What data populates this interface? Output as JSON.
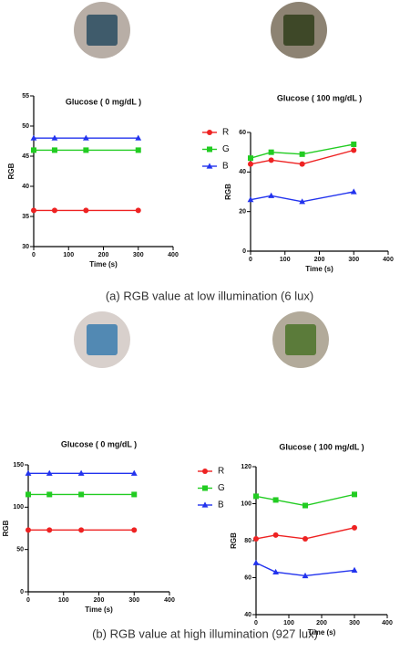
{
  "chart_data": [
    {
      "type": "line",
      "title": "Glucose ( 0 mg/dL )",
      "xlabel": "Time (s)",
      "ylabel": "RGB",
      "x": [
        0,
        60,
        150,
        300
      ],
      "xlim": [
        0,
        400
      ],
      "xticks": [
        0,
        100,
        200,
        300,
        400
      ],
      "ylim": [
        30,
        55
      ],
      "yticks": [
        30,
        35,
        40,
        45,
        50,
        55
      ],
      "series": [
        {
          "name": "R",
          "color": "#ee2222",
          "marker": "circle",
          "values": [
            36,
            36,
            36,
            36
          ]
        },
        {
          "name": "G",
          "color": "#22cc22",
          "marker": "square",
          "values": [
            46,
            46,
            46,
            46
          ]
        },
        {
          "name": "B",
          "color": "#2233ee",
          "marker": "triangle",
          "values": [
            48,
            48,
            48,
            48
          ]
        }
      ]
    },
    {
      "type": "line",
      "title": "Glucose ( 100 mg/dL )",
      "xlabel": "Time (s)",
      "ylabel": "RGB",
      "x": [
        0,
        60,
        150,
        300
      ],
      "xlim": [
        0,
        400
      ],
      "xticks": [
        0,
        100,
        200,
        300,
        400
      ],
      "ylim": [
        0,
        60
      ],
      "yticks": [
        0,
        20,
        40,
        60
      ],
      "series": [
        {
          "color": "#ee2222",
          "marker": "circle",
          "values": [
            44,
            46,
            44,
            51
          ]
        },
        {
          "color": "#22cc22",
          "marker": "square",
          "values": [
            47,
            50,
            49,
            54
          ]
        },
        {
          "color": "#2233ee",
          "marker": "triangle",
          "values": [
            26,
            28,
            25,
            30
          ]
        }
      ]
    },
    {
      "type": "line",
      "title": "Glucose ( 0 mg/dL )",
      "xlabel": "Time (s)",
      "ylabel": "RGB",
      "x": [
        0,
        60,
        150,
        300
      ],
      "xlim": [
        0,
        400
      ],
      "xticks": [
        0,
        100,
        200,
        300,
        400
      ],
      "ylim": [
        0,
        150
      ],
      "yticks": [
        0,
        50,
        100,
        150
      ],
      "series": [
        {
          "name": "R",
          "color": "#ee2222",
          "marker": "circle",
          "values": [
            73,
            73,
            73,
            73
          ]
        },
        {
          "name": "G",
          "color": "#22cc22",
          "marker": "square",
          "values": [
            115,
            115,
            115,
            115
          ]
        },
        {
          "name": "B",
          "color": "#2233ee",
          "marker": "triangle",
          "values": [
            140,
            140,
            140,
            140
          ]
        }
      ]
    },
    {
      "type": "line",
      "title": "Glucose ( 100 mg/dL )",
      "xlabel": "Time (s)",
      "ylabel": "RGB",
      "x": [
        0,
        60,
        150,
        300
      ],
      "xlim": [
        0,
        400
      ],
      "xticks": [
        0,
        100,
        200,
        300,
        400
      ],
      "ylim": [
        40,
        120
      ],
      "yticks": [
        40,
        60,
        80,
        100,
        120
      ],
      "series": [
        {
          "color": "#ee2222",
          "marker": "circle",
          "values": [
            81,
            83,
            81,
            87
          ]
        },
        {
          "color": "#22cc22",
          "marker": "square",
          "values": [
            104,
            102,
            99,
            105
          ]
        },
        {
          "color": "#2233ee",
          "marker": "triangle",
          "values": [
            68,
            63,
            61,
            64
          ]
        }
      ]
    }
  ],
  "captions": [
    "(a) RGB value at low illumination (6 lux)",
    "(b) RGB value at high illumination (927 lux)"
  ]
}
